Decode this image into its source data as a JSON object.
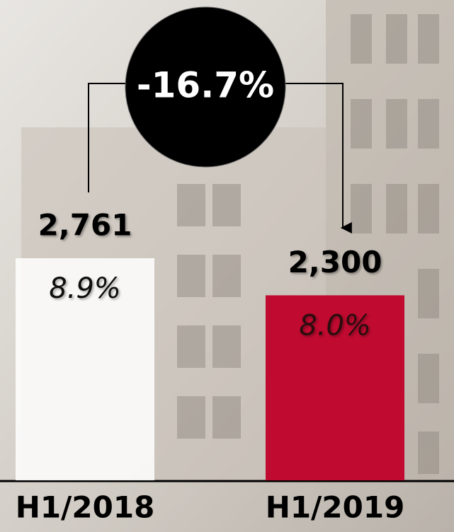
{
  "chart_data": {
    "type": "bar",
    "categories": [
      "H1/2018",
      "H1/2019"
    ],
    "values": [
      2761,
      2300
    ],
    "value_labels": [
      "2,761",
      "2,300"
    ],
    "inner_labels": [
      "8.9%",
      "8.0%"
    ],
    "colors": [
      "#ffffff",
      "#c00a30"
    ],
    "change_label": "-16.7%"
  }
}
